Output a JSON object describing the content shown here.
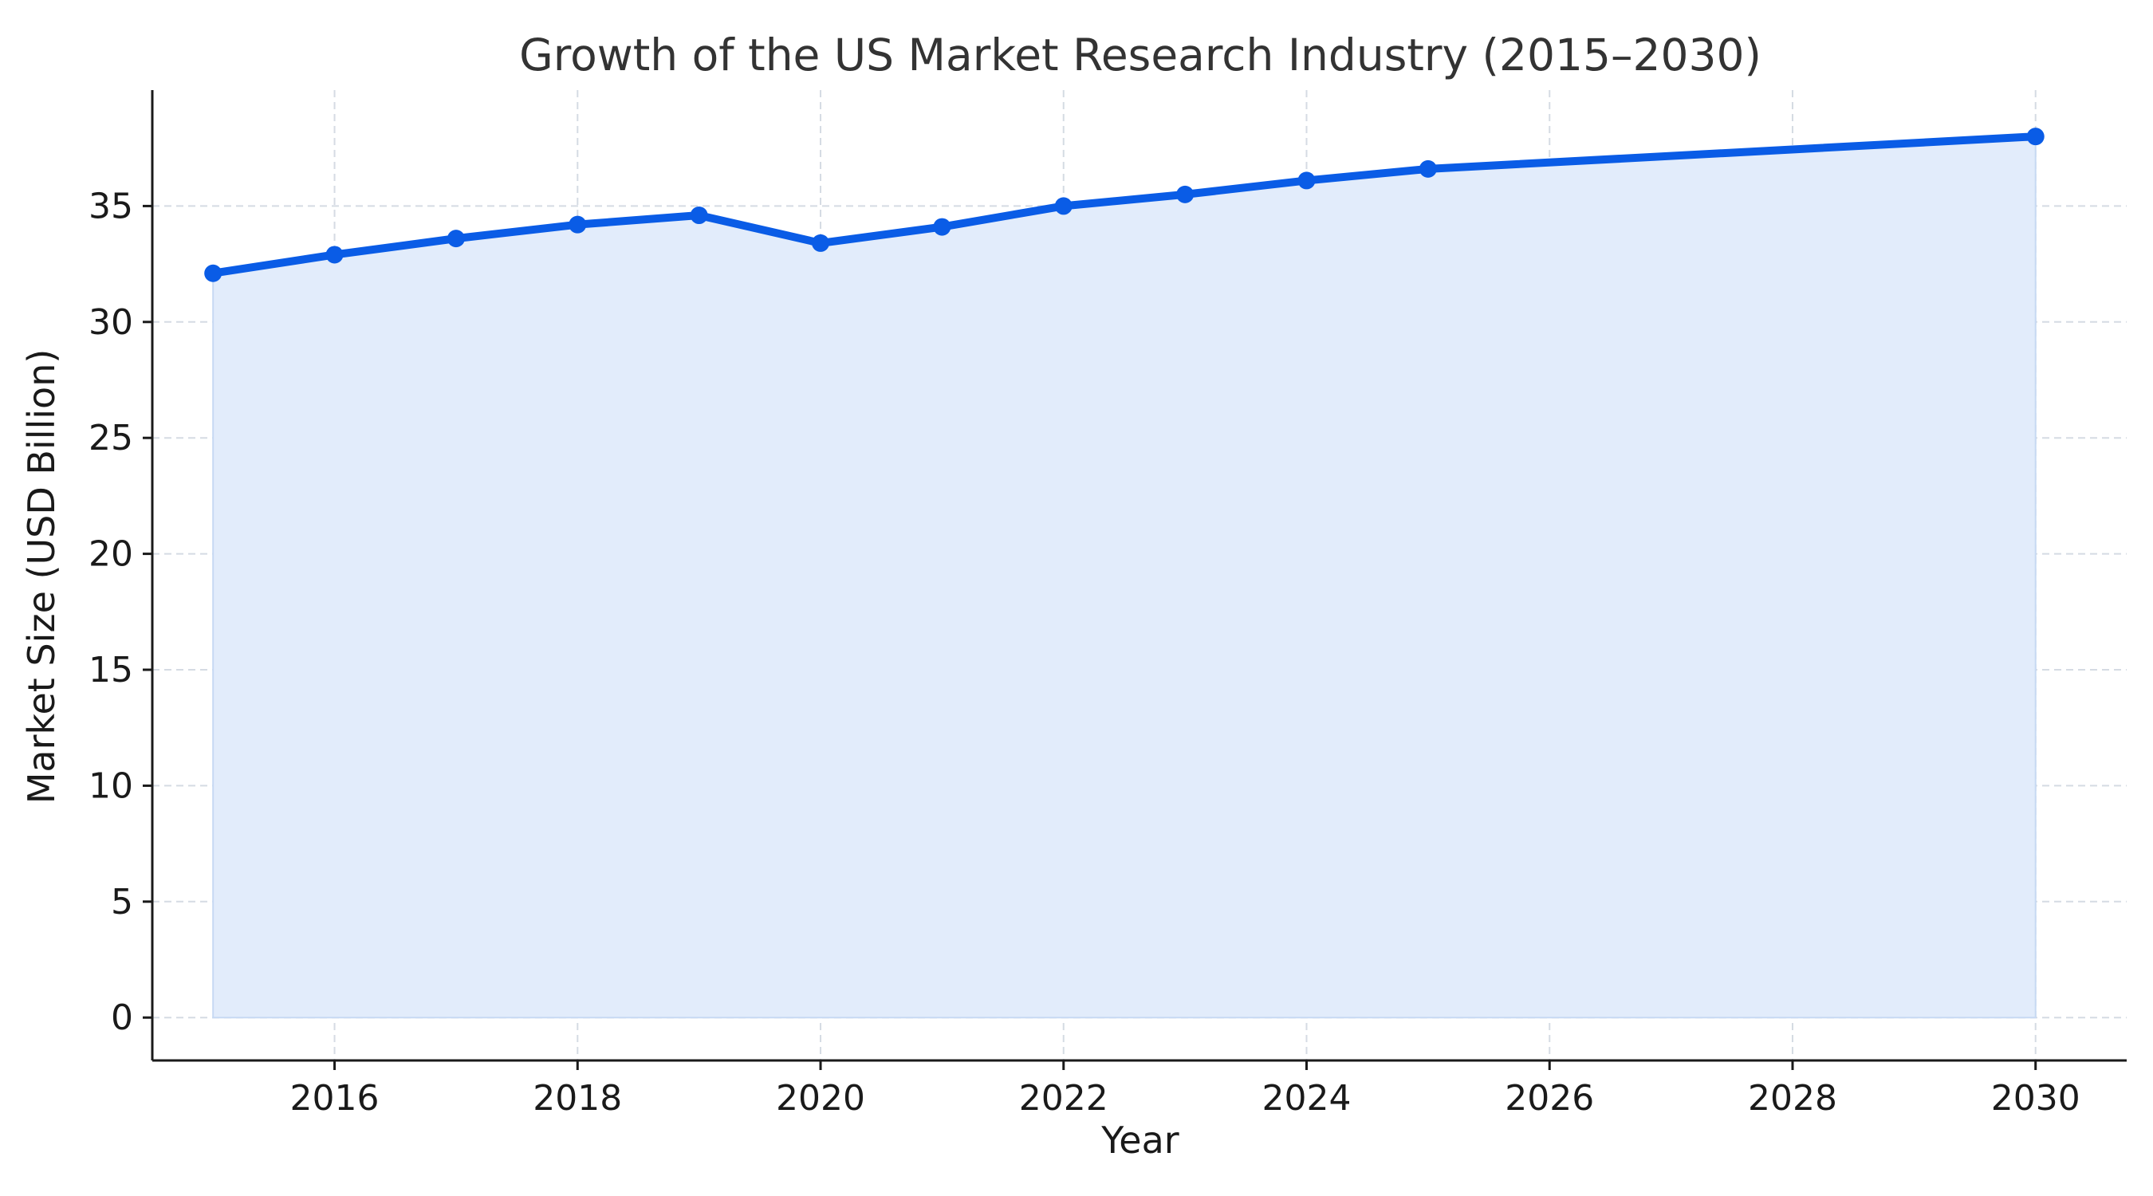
{
  "chart_data": {
    "type": "area",
    "title": "Growth of the US Market Research Industry (2015–2030)",
    "xlabel": "Year",
    "ylabel": "Market Size (USD Billion)",
    "x": [
      2015,
      2016,
      2017,
      2018,
      2019,
      2020,
      2021,
      2022,
      2023,
      2024,
      2025,
      2030
    ],
    "series": [
      {
        "values": [
          32.1,
          32.9,
          33.6,
          34.2,
          34.6,
          33.4,
          34.1,
          35.0,
          35.5,
          36.1,
          36.6,
          38.0
        ]
      }
    ],
    "xlim": [
      2014.5,
      2030.75
    ],
    "ylim": [
      -1.85,
      40.0
    ],
    "x_ticks": [
      2016,
      2018,
      2020,
      2022,
      2024,
      2026,
      2028,
      2030
    ],
    "y_ticks": [
      0,
      5,
      10,
      15,
      20,
      25,
      30,
      35
    ],
    "grid": true,
    "colors": {
      "line": "#0a5ce6",
      "fill": "#e2ecfb",
      "grid": "#d5dbe3",
      "axis": "#1a1a1a"
    }
  }
}
